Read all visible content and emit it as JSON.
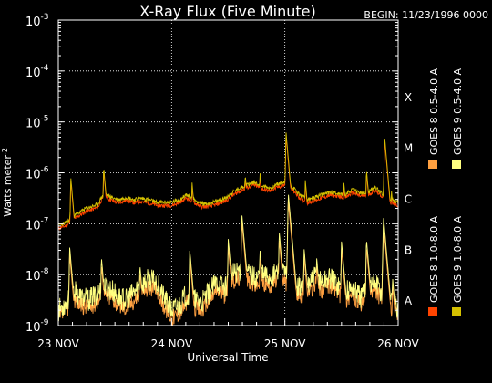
{
  "chart_data": {
    "type": "line",
    "title": "X-Ray Flux (Five Minute)",
    "begin_label": "BEGIN: 11/23/1996 0000",
    "xlabel": "Universal Time",
    "ylabel": "Watts meter^-2",
    "x_range_days": [
      0,
      3
    ],
    "x_ticks": [
      {
        "day": 0,
        "label": "23 NOV"
      },
      {
        "day": 1,
        "label": "24 NOV"
      },
      {
        "day": 2,
        "label": "25 NOV"
      },
      {
        "day": 3,
        "label": "26 NOV"
      }
    ],
    "y_scale": "log",
    "ylim": [
      1e-09,
      0.001
    ],
    "y_ticks": [
      {
        "exp": -3,
        "label": "10",
        "sup": "-3"
      },
      {
        "exp": -4,
        "label": "10",
        "sup": "-4"
      },
      {
        "exp": -5,
        "label": "10",
        "sup": "-5"
      },
      {
        "exp": -6,
        "label": "10",
        "sup": "-6"
      },
      {
        "exp": -7,
        "label": "10",
        "sup": "-7"
      },
      {
        "exp": -8,
        "label": "10",
        "sup": "-8"
      },
      {
        "exp": -9,
        "label": "10",
        "sup": "-9"
      }
    ],
    "flare_classes": [
      {
        "label": "X",
        "exp": -4
      },
      {
        "label": "M",
        "exp": -5
      },
      {
        "label": "C",
        "exp": -6
      },
      {
        "label": "B",
        "exp": -7
      },
      {
        "label": "A",
        "exp": -8
      }
    ],
    "grid": {
      "dotted": true,
      "horizontal_at_exp": [
        -4,
        -5,
        -6,
        -7,
        -8
      ],
      "vertical_at_day": [
        1,
        2
      ]
    },
    "legend_position": "right, rotated vertical",
    "series": [
      {
        "name": "GOES 8 1.0-8.0 A",
        "color": "#ff4400",
        "band": "long",
        "sat": 8
      },
      {
        "name": "GOES 8 0.5-4.0 A",
        "color": "#ffa040",
        "band": "short",
        "sat": 8
      },
      {
        "name": "GOES 9 1.0-8.0 A",
        "color": "#d4c000",
        "band": "long",
        "sat": 9
      },
      {
        "name": "GOES 9 0.5-4.0 A",
        "color": "#ffff80",
        "band": "short",
        "sat": 9
      }
    ],
    "long_band_log10_profile": [
      [
        0.0,
        -7.05
      ],
      [
        0.07,
        -7.0
      ],
      [
        0.13,
        -6.88
      ],
      [
        0.2,
        -6.78
      ],
      [
        0.24,
        -6.72
      ],
      [
        0.3,
        -6.68
      ],
      [
        0.35,
        -6.64
      ],
      [
        0.38,
        -6.5
      ],
      [
        0.42,
        -6.45
      ],
      [
        0.47,
        -6.5
      ],
      [
        0.53,
        -6.55
      ],
      [
        0.6,
        -6.5
      ],
      [
        0.67,
        -6.55
      ],
      [
        0.73,
        -6.52
      ],
      [
        0.8,
        -6.55
      ],
      [
        0.87,
        -6.6
      ],
      [
        0.93,
        -6.6
      ],
      [
        1.0,
        -6.6
      ],
      [
        1.07,
        -6.55
      ],
      [
        1.13,
        -6.45
      ],
      [
        1.2,
        -6.55
      ],
      [
        1.27,
        -6.63
      ],
      [
        1.33,
        -6.62
      ],
      [
        1.4,
        -6.58
      ],
      [
        1.47,
        -6.52
      ],
      [
        1.53,
        -6.42
      ],
      [
        1.6,
        -6.32
      ],
      [
        1.67,
        -6.25
      ],
      [
        1.73,
        -6.2
      ],
      [
        1.8,
        -6.28
      ],
      [
        1.87,
        -6.32
      ],
      [
        1.93,
        -6.25
      ],
      [
        2.0,
        -6.2
      ],
      [
        2.07,
        -6.3
      ],
      [
        2.13,
        -6.45
      ],
      [
        2.2,
        -6.55
      ],
      [
        2.27,
        -6.5
      ],
      [
        2.33,
        -6.45
      ],
      [
        2.4,
        -6.4
      ],
      [
        2.47,
        -6.42
      ],
      [
        2.53,
        -6.45
      ],
      [
        2.6,
        -6.35
      ],
      [
        2.67,
        -6.42
      ],
      [
        2.73,
        -6.4
      ],
      [
        2.8,
        -6.3
      ],
      [
        2.87,
        -6.45
      ],
      [
        2.93,
        -6.55
      ],
      [
        3.0,
        -6.6
      ]
    ],
    "long_band_peaks_log10": [
      [
        0.11,
        -6.1
      ],
      [
        0.4,
        -5.9
      ],
      [
        1.18,
        -6.2
      ],
      [
        1.65,
        -6.05
      ],
      [
        1.78,
        -6.0
      ],
      [
        2.01,
        -5.22
      ],
      [
        2.18,
        -6.15
      ],
      [
        2.52,
        -6.2
      ],
      [
        2.72,
        -5.95
      ],
      [
        2.88,
        -5.3
      ],
      [
        2.94,
        -6.35
      ]
    ],
    "short_band_log10_profile": [
      [
        0.0,
        -8.75
      ],
      [
        0.07,
        -8.6
      ],
      [
        0.13,
        -8.35
      ],
      [
        0.2,
        -8.5
      ],
      [
        0.27,
        -8.55
      ],
      [
        0.33,
        -8.45
      ],
      [
        0.4,
        -8.3
      ],
      [
        0.47,
        -8.35
      ],
      [
        0.53,
        -8.5
      ],
      [
        0.6,
        -8.55
      ],
      [
        0.67,
        -8.4
      ],
      [
        0.73,
        -8.25
      ],
      [
        0.8,
        -8.15
      ],
      [
        0.87,
        -8.2
      ],
      [
        0.93,
        -8.5
      ],
      [
        1.0,
        -8.75
      ],
      [
        1.07,
        -8.65
      ],
      [
        1.13,
        -8.45
      ],
      [
        1.2,
        -8.55
      ],
      [
        1.27,
        -8.6
      ],
      [
        1.33,
        -8.4
      ],
      [
        1.4,
        -8.2
      ],
      [
        1.47,
        -8.3
      ],
      [
        1.53,
        -8.05
      ],
      [
        1.6,
        -7.95
      ],
      [
        1.67,
        -8.0
      ],
      [
        1.73,
        -8.1
      ],
      [
        1.8,
        -8.05
      ],
      [
        1.87,
        -8.1
      ],
      [
        1.93,
        -8.0
      ],
      [
        2.0,
        -8.05
      ],
      [
        2.07,
        -8.15
      ],
      [
        2.13,
        -8.3
      ],
      [
        2.2,
        -8.25
      ],
      [
        2.27,
        -8.1
      ],
      [
        2.33,
        -8.2
      ],
      [
        2.4,
        -8.1
      ],
      [
        2.47,
        -8.25
      ],
      [
        2.53,
        -8.4
      ],
      [
        2.6,
        -8.3
      ],
      [
        2.67,
        -8.5
      ],
      [
        2.73,
        -8.3
      ],
      [
        2.8,
        -8.2
      ],
      [
        2.87,
        -8.45
      ],
      [
        2.93,
        -8.6
      ],
      [
        3.0,
        -8.7
      ]
    ],
    "short_band_peaks_log10": [
      [
        0.1,
        -7.5
      ],
      [
        0.38,
        -7.7
      ],
      [
        0.72,
        -7.85
      ],
      [
        1.16,
        -7.55
      ],
      [
        1.5,
        -7.35
      ],
      [
        1.62,
        -6.85
      ],
      [
        1.78,
        -7.55
      ],
      [
        1.95,
        -7.2
      ],
      [
        2.03,
        -6.45
      ],
      [
        2.17,
        -7.55
      ],
      [
        2.28,
        -7.7
      ],
      [
        2.5,
        -7.4
      ],
      [
        2.72,
        -7.35
      ],
      [
        2.87,
        -6.9
      ],
      [
        2.95,
        -8.1
      ]
    ]
  }
}
